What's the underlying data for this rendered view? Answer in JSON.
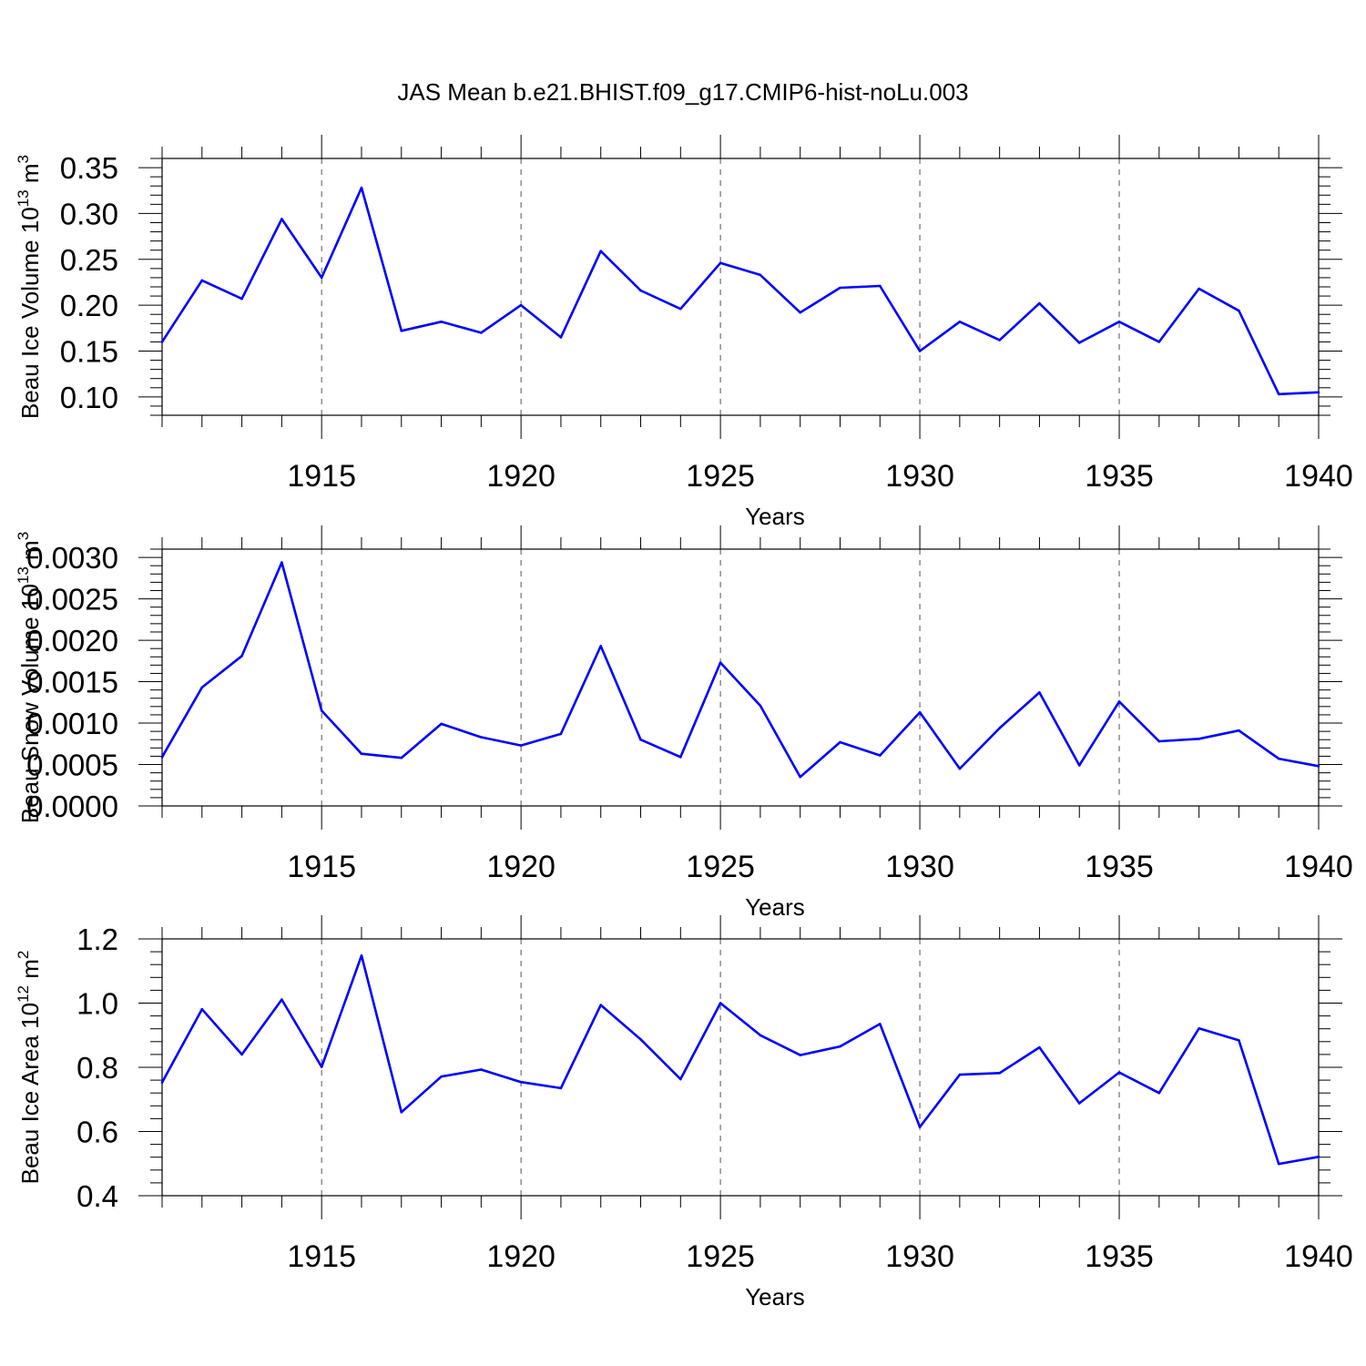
{
  "figure": {
    "title": "JAS Mean b.e21.BHIST.f09_g17.CMIP6-hist-noLu.003"
  },
  "colors": {
    "line": "#0000ff",
    "axis": "#000000",
    "grid": "#555555"
  },
  "chart_data": [
    {
      "type": "line",
      "xlabel": "Years",
      "ylabel": "Beau Ice Volume 10",
      "ylabel_exp": "13",
      "ylabel_unit": " m",
      "ylabel_unit_exp": "3",
      "xlim": [
        1911,
        1940
      ],
      "ylim": [
        0.08,
        0.36
      ],
      "xticks": [
        1915,
        1920,
        1925,
        1930,
        1935,
        1940
      ],
      "yticks": [
        0.1,
        0.15,
        0.2,
        0.25,
        0.3,
        0.35
      ],
      "ytick_labels": [
        "0.10",
        "0.15",
        "0.20",
        "0.25",
        "0.30",
        "0.35"
      ],
      "yminor_step": 0.01,
      "grid": "vertical dashed at major x ticks",
      "x": [
        1911,
        1912,
        1913,
        1914,
        1915,
        1916,
        1917,
        1918,
        1919,
        1920,
        1921,
        1922,
        1923,
        1924,
        1925,
        1926,
        1927,
        1928,
        1929,
        1930,
        1931,
        1932,
        1933,
        1934,
        1935,
        1936,
        1937,
        1938,
        1939,
        1940
      ],
      "values": [
        0.16,
        0.227,
        0.207,
        0.294,
        0.23,
        0.328,
        0.172,
        0.182,
        0.17,
        0.2,
        0.165,
        0.259,
        0.216,
        0.196,
        0.246,
        0.233,
        0.192,
        0.219,
        0.221,
        0.15,
        0.182,
        0.162,
        0.202,
        0.159,
        0.182,
        0.16,
        0.218,
        0.194,
        0.103,
        0.105
      ]
    },
    {
      "type": "line",
      "xlabel": "Years",
      "ylabel": "Beau Snow Volume 10",
      "ylabel_exp": "13",
      "ylabel_unit": " m",
      "ylabel_unit_exp": "3",
      "xlim": [
        1911,
        1940
      ],
      "ylim": [
        0.0,
        0.0031
      ],
      "xticks": [
        1915,
        1920,
        1925,
        1930,
        1935,
        1940
      ],
      "yticks": [
        0.0,
        0.0005,
        0.001,
        0.0015,
        0.002,
        0.0025,
        0.003
      ],
      "ytick_labels": [
        "0.0000",
        "0.0005",
        "0.0010",
        "0.0015",
        "0.0020",
        "0.0025",
        "0.0030"
      ],
      "yminor_step": 0.0001,
      "grid": "vertical dashed at major x ticks",
      "x": [
        1911,
        1912,
        1913,
        1914,
        1915,
        1916,
        1917,
        1918,
        1919,
        1920,
        1921,
        1922,
        1923,
        1924,
        1925,
        1926,
        1927,
        1928,
        1929,
        1930,
        1931,
        1932,
        1933,
        1934,
        1935,
        1936,
        1937,
        1938,
        1939,
        1940
      ],
      "values": [
        0.00059,
        0.00143,
        0.00181,
        0.00294,
        0.00115,
        0.00063,
        0.00058,
        0.00099,
        0.00083,
        0.00073,
        0.00087,
        0.00193,
        0.0008,
        0.00059,
        0.00173,
        0.00121,
        0.00035,
        0.00077,
        0.00061,
        0.00113,
        0.00045,
        0.00094,
        0.00137,
        0.00049,
        0.00126,
        0.00078,
        0.00081,
        0.00091,
        0.00057,
        0.00048
      ]
    },
    {
      "type": "line",
      "xlabel": "Years",
      "ylabel": "Beau Ice Area 10",
      "ylabel_exp": "12",
      "ylabel_unit": " m",
      "ylabel_unit_exp": "2",
      "xlim": [
        1911,
        1940
      ],
      "ylim": [
        0.4,
        1.2
      ],
      "xticks": [
        1915,
        1920,
        1925,
        1930,
        1935,
        1940
      ],
      "yticks": [
        0.4,
        0.6,
        0.8,
        1.0,
        1.2
      ],
      "ytick_labels": [
        "0.4",
        "0.6",
        "0.8",
        "1.0",
        "1.2"
      ],
      "yminor_step": 0.04,
      "grid": "vertical dashed at major x ticks",
      "x": [
        1911,
        1912,
        1913,
        1914,
        1915,
        1916,
        1917,
        1918,
        1919,
        1920,
        1921,
        1922,
        1923,
        1924,
        1925,
        1926,
        1927,
        1928,
        1929,
        1930,
        1931,
        1932,
        1933,
        1934,
        1935,
        1936,
        1937,
        1938,
        1939,
        1940
      ],
      "values": [
        0.753,
        0.981,
        0.84,
        1.011,
        0.801,
        1.148,
        0.66,
        0.771,
        0.793,
        0.754,
        0.735,
        0.994,
        0.887,
        0.763,
        1.0,
        0.9,
        0.838,
        0.865,
        0.935,
        0.614,
        0.777,
        0.782,
        0.862,
        0.688,
        0.784,
        0.72,
        0.921,
        0.884,
        0.499,
        0.521
      ]
    }
  ]
}
